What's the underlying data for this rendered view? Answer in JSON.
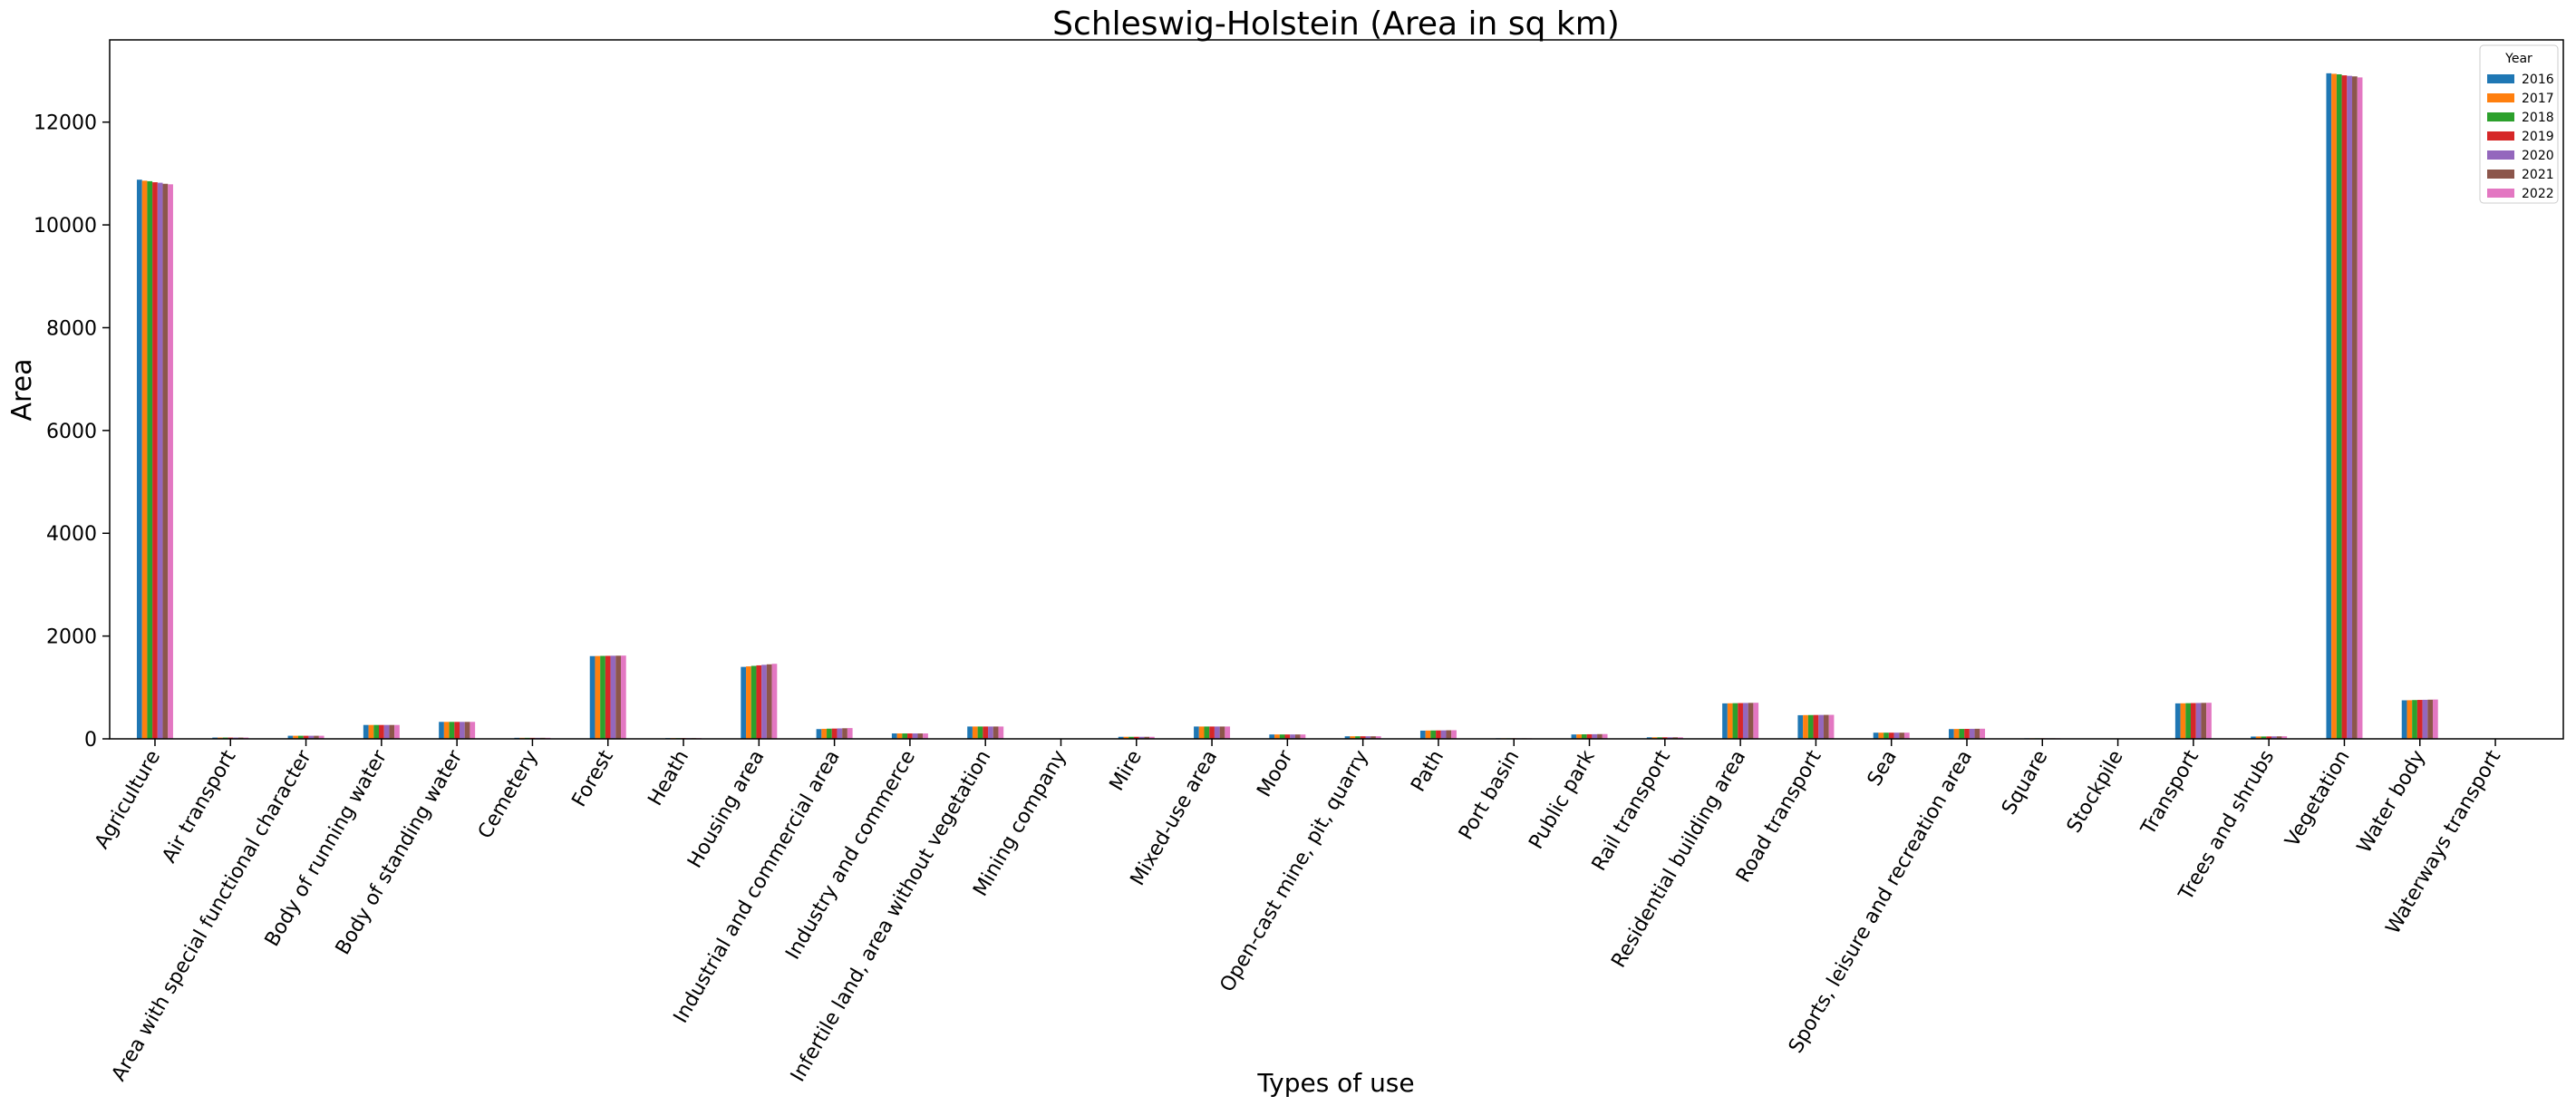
{
  "chart_data": {
    "type": "bar",
    "title": "Schleswig-Holstein (Area in sq km)",
    "xlabel": "Types of use",
    "ylabel": "Area",
    "ylim": [
      0,
      13600
    ],
    "yticks": [
      0,
      2000,
      4000,
      6000,
      8000,
      10000,
      12000
    ],
    "grid": false,
    "legend": {
      "title": "Year",
      "placement": "top-right"
    },
    "categories": [
      "Agriculture",
      "Air transport",
      "Area with special functional character",
      "Body of running water",
      "Body of standing water",
      "Cemetery",
      "Forest",
      "Heath",
      "Housing area",
      "Industrial and commercial area",
      "Industry and commerce",
      "Infertile land, area without vegetation",
      "Mining company",
      "Mire",
      "Mixed-use area",
      "Moor",
      "Open-cast mine, pit, quarry",
      "Path",
      "Port basin",
      "Public park",
      "Rail transport",
      "Residential building area",
      "Road transport",
      "Sea",
      "Sports, leisure and recreation area",
      "Square",
      "Stockpile",
      "Transport",
      "Trees and shrubs",
      "Vegetation",
      "Water body",
      "Waterways transport"
    ],
    "series": [
      {
        "name": "2016",
        "color": "#1f77b4",
        "values": [
          10880,
          25,
          60,
          270,
          330,
          20,
          1610,
          15,
          1400,
          190,
          105,
          240,
          3,
          40,
          240,
          85,
          50,
          160,
          12,
          85,
          30,
          690,
          460,
          120,
          190,
          12,
          2,
          690,
          45,
          12950,
          750,
          5
        ]
      },
      {
        "name": "2017",
        "color": "#ff7f0e",
        "values": [
          10860,
          25,
          60,
          270,
          330,
          20,
          1612,
          15,
          1410,
          195,
          105,
          240,
          3,
          40,
          240,
          85,
          50,
          162,
          12,
          87,
          30,
          692,
          462,
          120,
          192,
          12,
          2,
          692,
          46,
          12940,
          752,
          5
        ]
      },
      {
        "name": "2018",
        "color": "#2ca02c",
        "values": [
          10850,
          25,
          60,
          270,
          330,
          20,
          1614,
          15,
          1420,
          198,
          105,
          240,
          3,
          40,
          240,
          85,
          50,
          163,
          12,
          88,
          30,
          694,
          463,
          120,
          193,
          12,
          2,
          694,
          46,
          12930,
          755,
          5
        ]
      },
      {
        "name": "2019",
        "color": "#d62728",
        "values": [
          10830,
          25,
          60,
          270,
          330,
          20,
          1615,
          15,
          1430,
          200,
          105,
          240,
          3,
          40,
          240,
          85,
          50,
          164,
          12,
          89,
          30,
          696,
          464,
          120,
          194,
          12,
          2,
          696,
          47,
          12910,
          758,
          5
        ]
      },
      {
        "name": "2020",
        "color": "#9467bd",
        "values": [
          10820,
          25,
          60,
          270,
          330,
          20,
          1617,
          15,
          1440,
          203,
          105,
          240,
          3,
          40,
          240,
          85,
          50,
          165,
          12,
          90,
          30,
          698,
          465,
          120,
          195,
          12,
          2,
          698,
          48,
          12900,
          760,
          5
        ]
      },
      {
        "name": "2021",
        "color": "#8c564b",
        "values": [
          10800,
          25,
          60,
          270,
          330,
          20,
          1618,
          15,
          1450,
          206,
          105,
          240,
          3,
          40,
          240,
          85,
          50,
          167,
          12,
          92,
          30,
          700,
          466,
          120,
          196,
          12,
          2,
          700,
          49,
          12890,
          762,
          5
        ]
      },
      {
        "name": "2022",
        "color": "#e377c2",
        "values": [
          10790,
          25,
          60,
          270,
          330,
          20,
          1620,
          15,
          1460,
          210,
          105,
          240,
          3,
          40,
          240,
          85,
          50,
          168,
          12,
          93,
          30,
          702,
          467,
          120,
          197,
          12,
          2,
          702,
          50,
          12870,
          765,
          5
        ]
      }
    ]
  }
}
